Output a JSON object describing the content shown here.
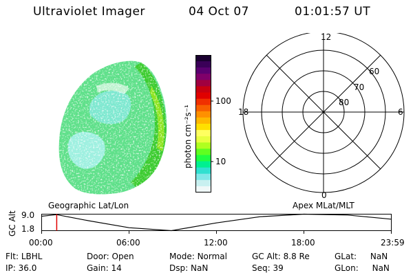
{
  "header": {
    "instrument": "Ultraviolet Imager",
    "date": "04 Oct 07",
    "time": "01:01:57 UT"
  },
  "colorbar": {
    "label": "photon cm⁻²s⁻¹",
    "ticks": [
      "100",
      "10"
    ],
    "scale": "log",
    "colors": [
      "#1a0030",
      "#3a0058",
      "#5a0070",
      "#80006a",
      "#a00040",
      "#c80010",
      "#e00000",
      "#f03000",
      "#f86000",
      "#ff9000",
      "#ffb800",
      "#ffe000",
      "#ffff60",
      "#e8ff40",
      "#b0ff20",
      "#60ff20",
      "#20ff40",
      "#00f090",
      "#30e0d0",
      "#80e8e8",
      "#c8f0f0",
      "#f0f8f8"
    ]
  },
  "polar_grid": {
    "mlt_labels": {
      "top": "12",
      "left": "18",
      "right": "6",
      "bottom": "0"
    },
    "lat_labels": [
      "60",
      "70",
      "80"
    ]
  },
  "timeline": {
    "left_label": "Geographic Lat/Lon",
    "right_label": "Apex MLat/MLT",
    "axis_title": "GC Alt",
    "y_ticks": [
      "9.0",
      "1.8"
    ],
    "x_ticks": [
      "00:00",
      "06:00",
      "12:00",
      "18:00",
      "23:59"
    ],
    "cursor_time": "01:01:57"
  },
  "info": {
    "flt_label": "Flt:",
    "flt_value": "LBHL",
    "ip_label": "IP:",
    "ip_value": "36.0",
    "door_label": "Door:",
    "door_value": "Open",
    "gain_label": "Gain:",
    "gain_value": "14",
    "mode_label": "Mode:",
    "mode_value": "Normal",
    "dsp_label": "Dsp:",
    "dsp_value": "NaN",
    "gcalt_label": "GC Alt:",
    "gcalt_value": "8.8 Re",
    "seq_label": "Seq:",
    "seq_value": "39",
    "glat_label": "GLat:",
    "glat_value": "NaN",
    "glon_label": "GLon:",
    "glon_value": "NaN"
  },
  "colors": {
    "cursor": "#e00000",
    "trace": "#000000"
  }
}
